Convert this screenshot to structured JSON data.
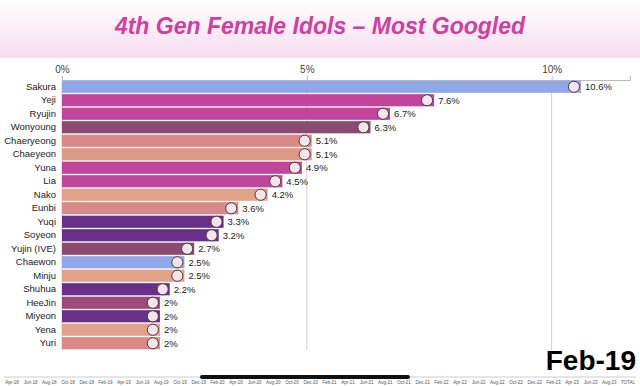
{
  "chart_data": {
    "type": "bar",
    "title": "4th Gen Female Idols – Most Googled",
    "orientation": "horizontal",
    "data_labels": true,
    "grid": true,
    "categories": [
      "Sakura",
      "Yeji",
      "Ryujin",
      "Wonyoung",
      "Chaeryeong",
      "Chaeyeon",
      "Yuna",
      "Lia",
      "Nako",
      "Eunbi",
      "Yuqi",
      "Soyeon",
      "Yujin (IVE)",
      "Chaewon",
      "Minju",
      "Shuhua",
      "HeeJin",
      "Miyeon",
      "Yena",
      "Yuri"
    ],
    "values": [
      10.6,
      7.6,
      6.7,
      6.3,
      5.1,
      5.1,
      4.9,
      4.5,
      4.2,
      3.6,
      3.3,
      3.2,
      2.7,
      2.5,
      2.5,
      2.2,
      2,
      2,
      2,
      2
    ],
    "value_labels": [
      "10.6%",
      "7.6%",
      "6.7%",
      "6.3%",
      "5.1%",
      "5.1%",
      "4.9%",
      "4.5%",
      "4.2%",
      "3.6%",
      "3.3%",
      "3.2%",
      "2.7%",
      "2.5%",
      "2.5%",
      "2.2%",
      "2%",
      "2%",
      "2%",
      "2%"
    ],
    "colors": [
      "#8fa8e8",
      "#c0459b",
      "#c0459b",
      "#8b4a72",
      "#d98a86",
      "#dc9a86",
      "#c0459b",
      "#c0459b",
      "#e2a28a",
      "#d4898a",
      "#6a2f8a",
      "#6a2f8a",
      "#8b4a72",
      "#8fa8e8",
      "#e2a28a",
      "#6a2f8a",
      "#9e4a7a",
      "#6a2f8a",
      "#e2a28a",
      "#d98a86"
    ],
    "xlim": [
      0,
      11.6
    ],
    "xticks": [
      {
        "value": 0,
        "label": "0%"
      },
      {
        "value": 5,
        "label": "5%"
      },
      {
        "value": 10,
        "label": "10%"
      }
    ],
    "annotations": [
      "Feb-19"
    ]
  },
  "timeline": {
    "labels": [
      "Apr-18",
      "Jun-18",
      "Aug-18",
      "Oct-18",
      "Dec-18",
      "Feb-19",
      "Apr-19",
      "Jun-19",
      "Aug-19",
      "Oct-19",
      "Dec-19",
      "Feb-20",
      "Apr-20",
      "Jun-20",
      "Aug-20",
      "Oct-20",
      "Dec-20",
      "Feb-21",
      "Apr-21",
      "Jun-21",
      "Aug-21",
      "Oct-21",
      "Dec-21",
      "Feb-22",
      "Apr-22",
      "Jun-22",
      "Aug-22",
      "Oct-22",
      "Dec-22",
      "Feb-23",
      "Apr-23",
      "Jun-23",
      "Aug-23",
      "TOTAL"
    ]
  }
}
